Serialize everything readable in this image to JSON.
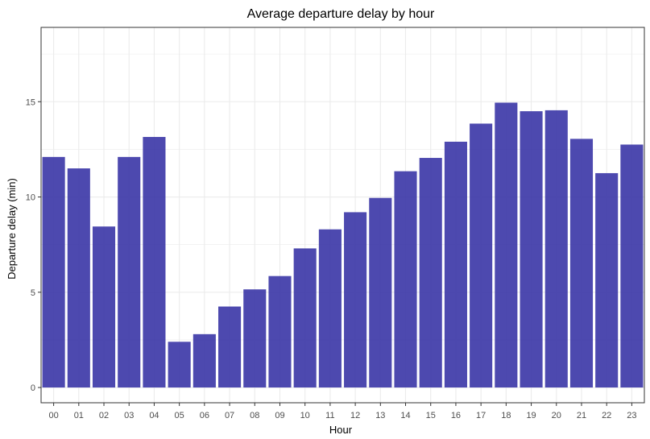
{
  "chart_data": {
    "type": "bar",
    "title": "Average departure delay by hour",
    "xlabel": "Hour",
    "ylabel": "Departure delay (min)",
    "categories": [
      "00",
      "01",
      "02",
      "03",
      "04",
      "05",
      "06",
      "07",
      "08",
      "09",
      "10",
      "11",
      "12",
      "13",
      "14",
      "15",
      "16",
      "17",
      "18",
      "19",
      "20",
      "21",
      "22",
      "23"
    ],
    "values": [
      12.1,
      11.5,
      8.45,
      12.1,
      13.15,
      2.4,
      2.8,
      4.25,
      5.15,
      5.85,
      7.3,
      8.3,
      9.2,
      9.95,
      11.35,
      12.05,
      12.9,
      13.85,
      14.95,
      14.5,
      14.55,
      13.05,
      11.25,
      12.75
    ],
    "ylim": [
      -0.8,
      18.9
    ],
    "yticks": [
      0,
      5,
      10,
      15
    ],
    "ytick_labels": [
      "0",
      "5",
      "10",
      "15"
    ],
    "grid": true,
    "bar_color": "#3a35a6",
    "bar_opacity": 0.9,
    "panel_border_color": "#333333",
    "grid_color": "#ebebeb"
  }
}
